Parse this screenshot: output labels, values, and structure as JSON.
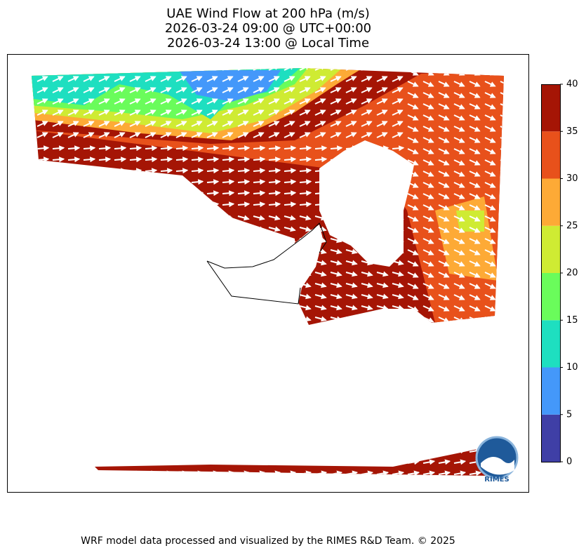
{
  "title": {
    "lines": [
      "UAE Wind Flow at 200 hPa (m/s)",
      "2026-03-24 09:00 @ UTC+00:00",
      "2026-03-24 13:00 @ Local Time"
    ]
  },
  "colorbar": {
    "bins": [
      0,
      5,
      10,
      15,
      20,
      25,
      30,
      35,
      40
    ],
    "colors": [
      "#3f3fa6",
      "#4498fa",
      "#1edfc0",
      "#6afc5b",
      "#cfeb33",
      "#fdaa36",
      "#e8511b",
      "#a51505"
    ],
    "lim": [
      0,
      40
    ],
    "ticks": [
      0,
      5,
      10,
      15,
      20,
      25,
      30,
      35,
      40
    ]
  },
  "logo": {
    "label": "RIMES"
  },
  "footer": "WRF model data processed and visualized by the RIMES R&D Team. © 2025"
}
